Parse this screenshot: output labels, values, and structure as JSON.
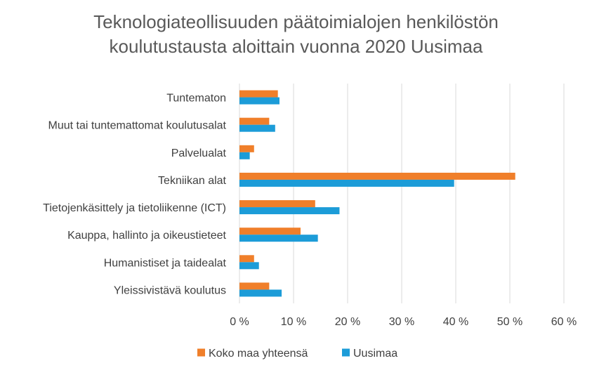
{
  "chart_data": {
    "type": "bar",
    "orientation": "horizontal",
    "title_lines": [
      "Teknologiateollisuuden päätoimialojen henkilöstön",
      "koulutustausta aloittain vuonna 2020 Uusimaa"
    ],
    "categories": [
      "Tuntematon",
      "Muut tai tuntemattomat koulutusalat",
      "Palvelualat",
      "Tekniikan alat",
      "Tietojenkäsittely ja tietoliikenne (ICT)",
      "Kauppa, hallinto ja oikeustieteet",
      "Humanistiset ja taidealat",
      "Yleissivistävä koulutus"
    ],
    "series": [
      {
        "name": "Koko maa yhteensä",
        "color": "#F07F2A",
        "values": [
          7.1,
          5.5,
          2.7,
          51.0,
          14.0,
          11.3,
          2.7,
          5.5
        ]
      },
      {
        "name": "Uusimaa",
        "color": "#1C9CD8",
        "values": [
          7.4,
          6.6,
          1.9,
          39.7,
          18.5,
          14.5,
          3.6,
          7.8
        ]
      }
    ],
    "xlim": [
      0,
      60
    ],
    "x_ticks": [
      "0 %",
      "10 %",
      "20 %",
      "30 %",
      "40 %",
      "50 %",
      "60 %"
    ],
    "grid": true,
    "legend_position": "bottom",
    "colors": {
      "gridline": "#D9D9D9",
      "text": "#404040",
      "title": "#595959"
    }
  }
}
